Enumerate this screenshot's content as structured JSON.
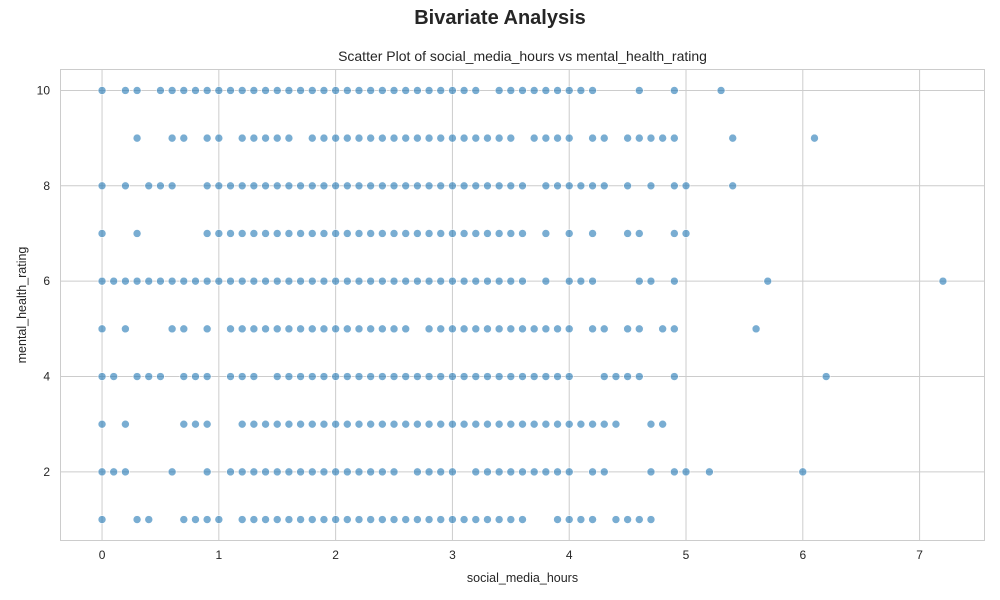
{
  "figure": {
    "suptitle": "Bivariate Analysis"
  },
  "chart_data": {
    "type": "scatter",
    "title": "Scatter Plot of social_media_hours vs mental_health_rating",
    "xlabel": "social_media_hours",
    "ylabel": "mental_health_rating",
    "xlim": [
      -0.36,
      7.56
    ],
    "ylim": [
      0.55,
      10.45
    ],
    "xticks": [
      0,
      1,
      2,
      3,
      4,
      5,
      6,
      7
    ],
    "yticks": [
      2,
      4,
      6,
      8,
      10
    ],
    "grid": true,
    "marker_color": "#1f77b4",
    "marker_alpha": 0.6,
    "rows": [
      {
        "y": 10,
        "x": [
          0.0,
          0.2,
          0.3,
          0.5,
          0.6,
          0.7,
          0.8,
          0.9,
          1.0,
          1.1,
          1.2,
          1.3,
          1.4,
          1.5,
          1.6,
          1.7,
          1.8,
          1.9,
          2.0,
          2.1,
          2.2,
          2.3,
          2.4,
          2.5,
          2.6,
          2.7,
          2.8,
          2.9,
          3.0,
          3.1,
          3.2,
          3.4,
          3.5,
          3.6,
          3.7,
          3.8,
          3.9,
          4.0,
          4.1,
          4.2,
          4.6,
          4.9,
          5.3
        ]
      },
      {
        "y": 9,
        "x": [
          0.3,
          0.6,
          0.7,
          0.9,
          1.0,
          1.2,
          1.3,
          1.4,
          1.5,
          1.6,
          1.8,
          1.9,
          2.0,
          2.1,
          2.2,
          2.3,
          2.4,
          2.5,
          2.6,
          2.7,
          2.8,
          2.9,
          3.0,
          3.1,
          3.2,
          3.3,
          3.4,
          3.5,
          3.7,
          3.8,
          3.9,
          4.0,
          4.2,
          4.3,
          4.5,
          4.6,
          4.7,
          4.8,
          4.9,
          5.4,
          6.1
        ]
      },
      {
        "y": 8,
        "x": [
          0.0,
          0.2,
          0.4,
          0.5,
          0.6,
          0.9,
          1.0,
          1.1,
          1.2,
          1.3,
          1.4,
          1.5,
          1.6,
          1.7,
          1.8,
          1.9,
          2.0,
          2.1,
          2.2,
          2.3,
          2.4,
          2.5,
          2.6,
          2.7,
          2.8,
          2.9,
          3.0,
          3.1,
          3.2,
          3.3,
          3.4,
          3.5,
          3.6,
          3.8,
          3.9,
          4.0,
          4.1,
          4.2,
          4.3,
          4.5,
          4.7,
          4.9,
          5.0,
          5.4
        ]
      },
      {
        "y": 7,
        "x": [
          0.0,
          0.3,
          0.9,
          1.0,
          1.1,
          1.2,
          1.3,
          1.4,
          1.5,
          1.6,
          1.7,
          1.8,
          1.9,
          2.0,
          2.1,
          2.2,
          2.3,
          2.4,
          2.5,
          2.6,
          2.7,
          2.8,
          2.9,
          3.0,
          3.1,
          3.2,
          3.3,
          3.4,
          3.5,
          3.6,
          3.8,
          4.0,
          4.2,
          4.5,
          4.6,
          4.9,
          5.0
        ]
      },
      {
        "y": 6,
        "x": [
          0.0,
          0.1,
          0.2,
          0.3,
          0.4,
          0.5,
          0.6,
          0.7,
          0.8,
          0.9,
          1.0,
          1.1,
          1.2,
          1.3,
          1.4,
          1.5,
          1.6,
          1.7,
          1.8,
          1.9,
          2.0,
          2.1,
          2.2,
          2.3,
          2.4,
          2.5,
          2.6,
          2.7,
          2.8,
          2.9,
          3.0,
          3.1,
          3.2,
          3.3,
          3.4,
          3.5,
          3.6,
          3.8,
          4.0,
          4.1,
          4.2,
          4.6,
          4.7,
          4.9,
          5.7,
          7.2
        ]
      },
      {
        "y": 5,
        "x": [
          0.0,
          0.2,
          0.6,
          0.7,
          0.9,
          1.1,
          1.2,
          1.3,
          1.4,
          1.5,
          1.6,
          1.7,
          1.8,
          1.9,
          2.0,
          2.1,
          2.2,
          2.3,
          2.4,
          2.5,
          2.6,
          2.8,
          2.9,
          3.0,
          3.1,
          3.2,
          3.3,
          3.4,
          3.5,
          3.6,
          3.7,
          3.8,
          3.9,
          4.0,
          4.2,
          4.3,
          4.5,
          4.6,
          4.8,
          4.9,
          5.6
        ]
      },
      {
        "y": 4,
        "x": [
          0.0,
          0.1,
          0.3,
          0.4,
          0.5,
          0.7,
          0.8,
          0.9,
          1.1,
          1.2,
          1.3,
          1.5,
          1.6,
          1.7,
          1.8,
          1.9,
          2.0,
          2.1,
          2.2,
          2.3,
          2.4,
          2.5,
          2.6,
          2.7,
          2.8,
          2.9,
          3.0,
          3.1,
          3.2,
          3.3,
          3.4,
          3.5,
          3.6,
          3.7,
          3.8,
          3.9,
          4.0,
          4.3,
          4.4,
          4.5,
          4.6,
          4.9,
          6.2
        ]
      },
      {
        "y": 3,
        "x": [
          0.0,
          0.2,
          0.7,
          0.8,
          0.9,
          1.2,
          1.3,
          1.4,
          1.5,
          1.6,
          1.7,
          1.8,
          1.9,
          2.0,
          2.1,
          2.2,
          2.3,
          2.4,
          2.5,
          2.6,
          2.7,
          2.8,
          2.9,
          3.0,
          3.1,
          3.2,
          3.3,
          3.4,
          3.5,
          3.6,
          3.7,
          3.8,
          3.9,
          4.0,
          4.1,
          4.2,
          4.3,
          4.4,
          4.7,
          4.8
        ]
      },
      {
        "y": 2,
        "x": [
          0.0,
          0.1,
          0.2,
          0.6,
          0.9,
          1.1,
          1.2,
          1.3,
          1.4,
          1.5,
          1.6,
          1.7,
          1.8,
          1.9,
          2.0,
          2.1,
          2.2,
          2.3,
          2.4,
          2.5,
          2.7,
          2.8,
          2.9,
          3.0,
          3.2,
          3.3,
          3.4,
          3.5,
          3.6,
          3.7,
          3.8,
          3.9,
          4.0,
          4.2,
          4.3,
          4.7,
          4.9,
          5.0,
          5.2,
          6.0
        ]
      },
      {
        "y": 1,
        "x": [
          0.0,
          0.3,
          0.4,
          0.7,
          0.8,
          0.9,
          1.0,
          1.2,
          1.3,
          1.4,
          1.5,
          1.6,
          1.7,
          1.8,
          1.9,
          2.0,
          2.1,
          2.2,
          2.3,
          2.4,
          2.5,
          2.6,
          2.7,
          2.8,
          2.9,
          3.0,
          3.1,
          3.2,
          3.3,
          3.4,
          3.5,
          3.6,
          3.9,
          4.0,
          4.1,
          4.2,
          4.4,
          4.5,
          4.6,
          4.7
        ]
      }
    ]
  }
}
